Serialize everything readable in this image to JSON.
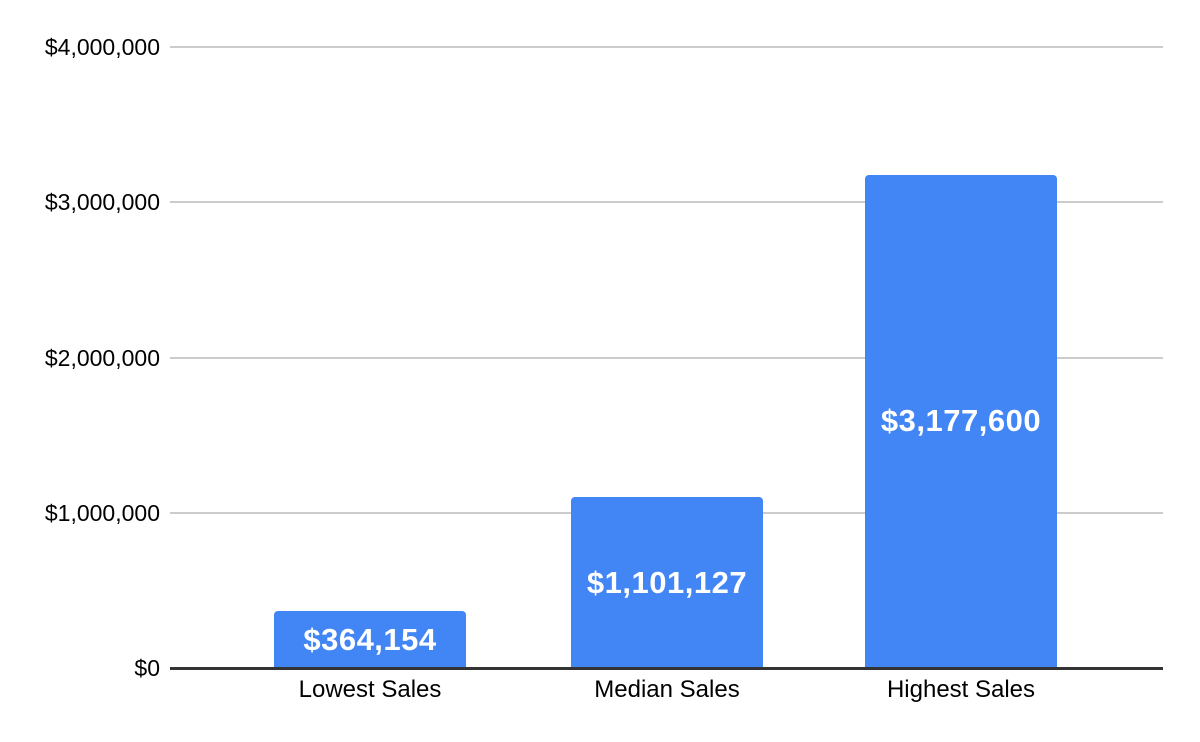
{
  "chart_data": {
    "type": "bar",
    "title": "",
    "xlabel": "",
    "ylabel": "",
    "categories": [
      "Lowest Sales",
      "Median Sales",
      "Highest Sales"
    ],
    "values": [
      364154,
      1101127,
      3177600
    ],
    "value_labels": [
      "$364,154",
      "$1,101,127",
      "$3,177,600"
    ],
    "y_axis": {
      "min": 0,
      "max": 4000000,
      "ticks": [
        {
          "value": 0,
          "label": "$0"
        },
        {
          "value": 1000000,
          "label": "$1,000,000"
        },
        {
          "value": 2000000,
          "label": "$2,000,000"
        },
        {
          "value": 3000000,
          "label": "$3,000,000"
        },
        {
          "value": 4000000,
          "label": "$4,000,000"
        }
      ]
    },
    "grid": true,
    "legend": "none",
    "colors": {
      "bar": "#4285F4",
      "bar_label_text": "#FFFFFF",
      "gridline": "#CCCCCC",
      "axis_line": "#333333",
      "axis_text": "#000000",
      "background": "#FFFFFF"
    }
  }
}
